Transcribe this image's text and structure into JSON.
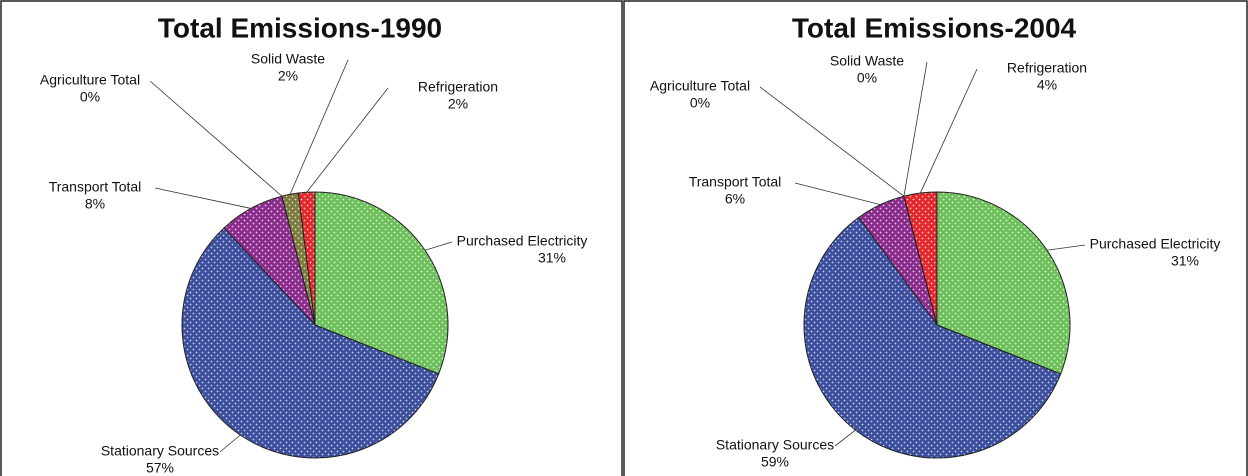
{
  "chart_data": [
    {
      "type": "pie",
      "title": "Total Emissions-1990",
      "categories": [
        "Purchased Electricity",
        "Stationary Sources",
        "Transport Total",
        "Agriculture Total",
        "Solid Waste",
        "Refrigeration"
      ],
      "values": [
        31,
        57,
        8,
        0,
        2,
        2
      ],
      "value_labels": [
        "31%",
        "57%",
        "8%",
        "0%",
        "2%",
        "2%"
      ],
      "colors": [
        "#6cc05a",
        "#3b4f9e",
        "#8a2b8c",
        "#333333",
        "#7c7a3a",
        "#e3262b"
      ]
    },
    {
      "type": "pie",
      "title": "Total Emissions-2004",
      "categories": [
        "Purchased Electricity",
        "Stationary Sources",
        "Transport Total",
        "Agriculture Total",
        "Solid Waste",
        "Refrigeration"
      ],
      "values": [
        31,
        59,
        6,
        0,
        0,
        4
      ],
      "value_labels": [
        "31%",
        "59%",
        "6%",
        "0%",
        "0%",
        "4%"
      ],
      "colors": [
        "#6cc05a",
        "#3b4f9e",
        "#8a2b8c",
        "#333333",
        "#7c7a3a",
        "#e3262b"
      ]
    }
  ]
}
